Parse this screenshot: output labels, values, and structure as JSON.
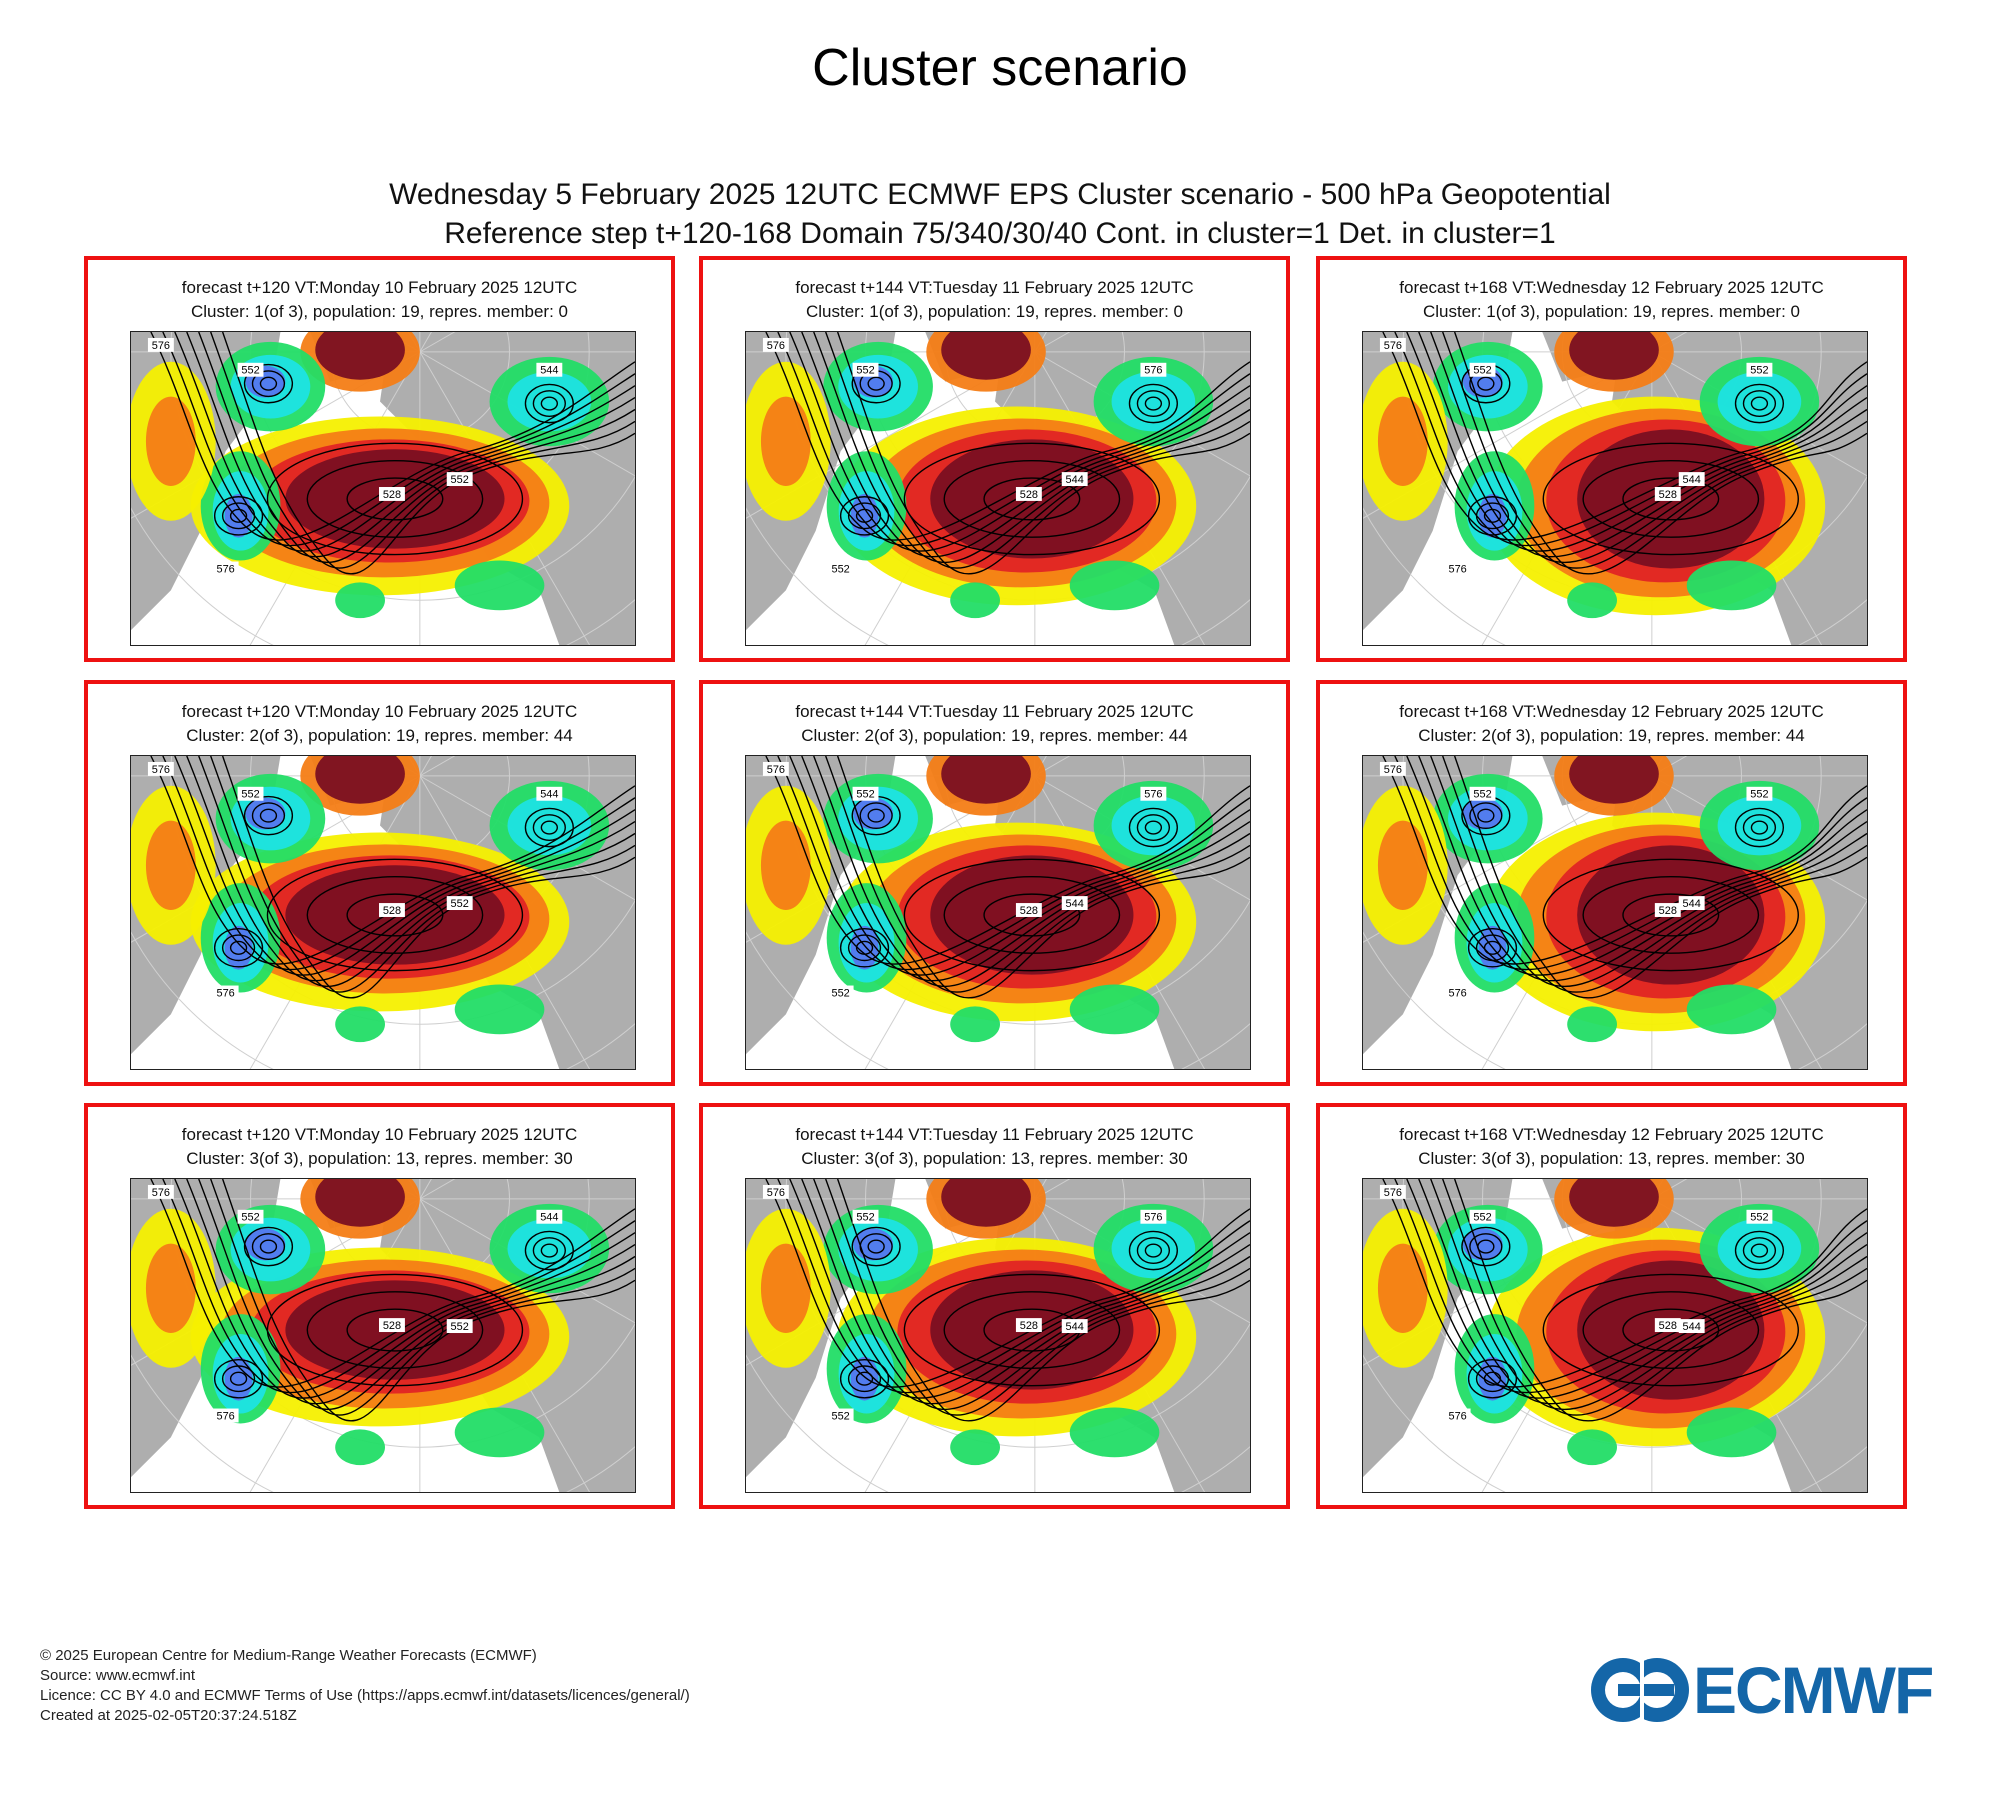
{
  "page_title": "Cluster scenario",
  "subtitle_line1": "Wednesday 5 February 2025 12UTC ECMWF EPS Cluster scenario - 500 hPa Geopotential",
  "subtitle_line2": "Reference step t+120-168 Domain 75/340/30/40 Cont. in cluster=1 Det. in cluster=1",
  "colors": {
    "panel_border": "#ee1111",
    "anomaly_dark_red": "#7a0f22",
    "anomaly_red": "#e02424",
    "anomaly_orange": "#f47d16",
    "anomaly_yellow": "#f6f000",
    "anomaly_green": "#22dd66",
    "anomaly_cyan": "#1de3e3",
    "anomaly_blue": "#5577ee",
    "land_gray": "#a0a0a0",
    "logo_blue": "#1466a8"
  },
  "panels": [
    {
      "line1": "forecast t+120 VT:Monday 10 February 2025 12UTC",
      "line2": "Cluster: 1(of 3), population: 19, repres. member: 0",
      "contour_labels": [
        "576",
        "552",
        "528",
        "552",
        "544",
        "576"
      ]
    },
    {
      "line1": "forecast t+144 VT:Tuesday 11 February 2025 12UTC",
      "line2": "Cluster: 1(of 3), population: 19, repres. member: 0",
      "contour_labels": [
        "576",
        "552",
        "528",
        "544",
        "576",
        "552"
      ]
    },
    {
      "line1": "forecast t+168 VT:Wednesday 12 February 2025 12UTC",
      "line2": "Cluster: 1(of 3), population: 19, repres. member: 0",
      "contour_labels": [
        "576",
        "552",
        "528",
        "544",
        "552",
        "576"
      ]
    },
    {
      "line1": "forecast t+120 VT:Monday 10 February 2025 12UTC",
      "line2": "Cluster: 2(of 3), population: 19, repres. member: 44",
      "contour_labels": [
        "576",
        "552",
        "528",
        "552",
        "544",
        "576"
      ]
    },
    {
      "line1": "forecast t+144 VT:Tuesday 11 February 2025 12UTC",
      "line2": "Cluster: 2(of 3), population: 19, repres. member: 44",
      "contour_labels": [
        "576",
        "552",
        "528",
        "544",
        "576",
        "552"
      ]
    },
    {
      "line1": "forecast t+168 VT:Wednesday 12 February 2025 12UTC",
      "line2": "Cluster: 2(of 3), population: 19, repres. member: 44",
      "contour_labels": [
        "576",
        "552",
        "528",
        "544",
        "552",
        "576"
      ]
    },
    {
      "line1": "forecast t+120 VT:Monday 10 February 2025 12UTC",
      "line2": "Cluster: 3(of 3), population: 13, repres. member: 30",
      "contour_labels": [
        "576",
        "552",
        "528",
        "552",
        "544",
        "576"
      ]
    },
    {
      "line1": "forecast t+144 VT:Tuesday 11 February 2025 12UTC",
      "line2": "Cluster: 3(of 3), population: 13, repres. member: 30",
      "contour_labels": [
        "576",
        "552",
        "528",
        "544",
        "576",
        "552"
      ]
    },
    {
      "line1": "forecast t+168 VT:Wednesday 12 February 2025 12UTC",
      "line2": "Cluster: 3(of 3), population: 13, repres. member: 30",
      "contour_labels": [
        "576",
        "552",
        "528",
        "544",
        "552",
        "576"
      ]
    }
  ],
  "footer": {
    "copyright": "© 2025 European Centre for Medium-Range Weather Forecasts (ECMWF)",
    "source": "Source: www.ecmwf.int",
    "licence": "Licence: CC BY 4.0 and ECMWF Terms of Use (https://apps.ecmwf.int/datasets/licences/general/)",
    "created": "Created at 2025-02-05T20:37:24.518Z"
  },
  "logo_text": "ECMWF"
}
